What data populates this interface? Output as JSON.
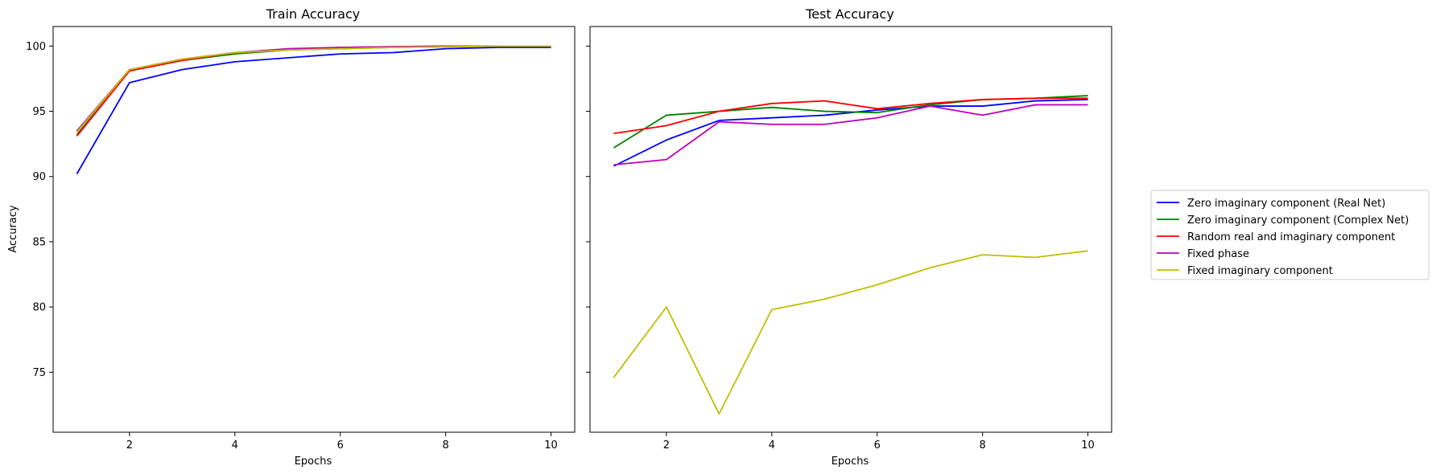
{
  "chart_data": [
    {
      "type": "line",
      "title": "Train Accuracy",
      "xlabel": "Epochs",
      "ylabel": "Accuracy",
      "xlim": [
        0.55,
        10.45
      ],
      "ylim": [
        70.4,
        101.5
      ],
      "xticks": [
        2,
        4,
        6,
        8,
        10
      ],
      "yticks": [
        75,
        80,
        85,
        90,
        95,
        100
      ],
      "x": [
        1,
        2,
        3,
        4,
        5,
        6,
        7,
        8,
        9,
        10
      ],
      "series": [
        {
          "name": "Zero imaginary component (Real Net)",
          "color": "#0000ff",
          "values": [
            90.2,
            97.2,
            98.2,
            98.8,
            99.1,
            99.4,
            99.5,
            99.8,
            99.9,
            99.9
          ]
        },
        {
          "name": "Zero imaginary component (Complex Net)",
          "color": "#008000",
          "values": [
            93.2,
            98.1,
            98.9,
            99.4,
            99.7,
            99.8,
            99.9,
            99.95,
            100.0,
            100.0
          ]
        },
        {
          "name": "Random real and imaginary component",
          "color": "#ff0000",
          "values": [
            93.1,
            98.1,
            98.9,
            99.5,
            99.7,
            99.9,
            99.95,
            100.0,
            100.0,
            100.0
          ]
        },
        {
          "name": "Fixed phase",
          "color": "#bf00bf",
          "values": [
            93.5,
            98.2,
            99.0,
            99.5,
            99.8,
            99.9,
            99.95,
            100.0,
            100.0,
            100.0
          ]
        },
        {
          "name": "Fixed imaginary component",
          "color": "#bfbf00",
          "values": [
            93.4,
            98.2,
            99.0,
            99.5,
            99.7,
            99.8,
            99.9,
            99.95,
            100.0,
            100.0
          ]
        }
      ]
    },
    {
      "type": "line",
      "title": "Test Accuracy",
      "xlabel": "Epochs",
      "xlim": [
        0.55,
        10.45
      ],
      "ylim": [
        70.4,
        101.5
      ],
      "xticks": [
        2,
        4,
        6,
        8,
        10
      ],
      "yticks": [
        75,
        80,
        85,
        90,
        95,
        100
      ],
      "x": [
        1,
        2,
        3,
        4,
        5,
        6,
        7,
        8,
        9,
        10
      ],
      "series": [
        {
          "name": "Zero imaginary component (Real Net)",
          "color": "#0000ff",
          "values": [
            90.8,
            92.8,
            94.3,
            94.5,
            94.7,
            95.1,
            95.4,
            95.4,
            95.8,
            95.9
          ]
        },
        {
          "name": "Zero imaginary component (Complex Net)",
          "color": "#008000",
          "values": [
            92.2,
            94.7,
            95.0,
            95.3,
            95.0,
            94.9,
            95.5,
            95.9,
            96.0,
            96.2
          ]
        },
        {
          "name": "Random real and imaginary component",
          "color": "#ff0000",
          "values": [
            93.3,
            93.9,
            95.0,
            95.6,
            95.8,
            95.2,
            95.6,
            95.9,
            96.0,
            96.0
          ]
        },
        {
          "name": "Fixed phase",
          "color": "#bf00bf",
          "values": [
            90.9,
            91.3,
            94.2,
            94.0,
            94.0,
            94.5,
            95.4,
            94.7,
            95.5,
            95.5
          ]
        },
        {
          "name": "Fixed imaginary component",
          "color": "#bfbf00",
          "values": [
            74.6,
            80.0,
            71.8,
            79.8,
            80.6,
            81.7,
            83.0,
            84.0,
            83.8,
            84.3
          ]
        }
      ]
    }
  ],
  "legend": {
    "placement": "right",
    "entries": [
      {
        "label": "Zero imaginary component (Real Net)",
        "color": "#0000ff"
      },
      {
        "label": "Zero imaginary component (Complex Net)",
        "color": "#008000"
      },
      {
        "label": "Random real and imaginary component",
        "color": "#ff0000"
      },
      {
        "label": "Fixed phase",
        "color": "#bf00bf"
      },
      {
        "label": "Fixed imaginary component",
        "color": "#bfbf00"
      }
    ]
  }
}
